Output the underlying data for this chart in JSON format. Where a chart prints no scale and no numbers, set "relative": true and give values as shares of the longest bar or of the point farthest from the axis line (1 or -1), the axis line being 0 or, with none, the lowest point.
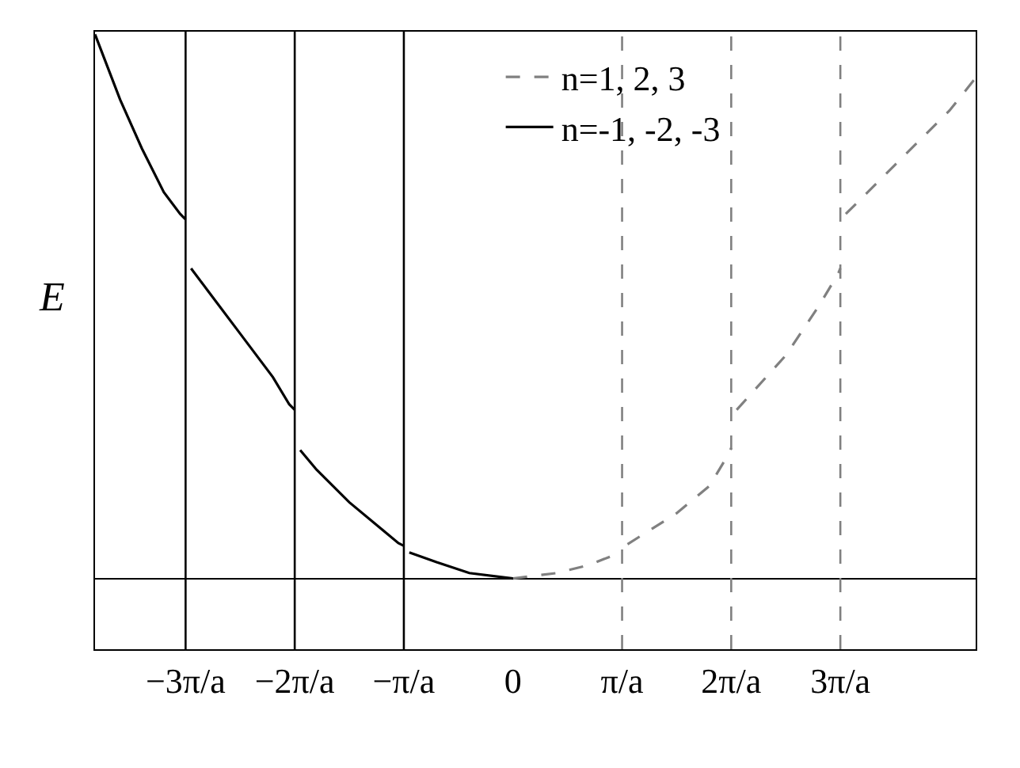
{
  "chart_data": {
    "type": "line",
    "relative": true,
    "ylabel": "E",
    "xlim": [
      -3.83,
      4.24
    ],
    "xticks": [
      {
        "value": -3,
        "label": "−3π/a"
      },
      {
        "value": -2,
        "label": "−2π/a"
      },
      {
        "value": -1,
        "label": "−π/a"
      },
      0,
      {
        "value": 1,
        "label": "π/a"
      },
      {
        "value": 2,
        "label": "2π/a"
      },
      {
        "value": 3,
        "label": "3π/a"
      }
    ],
    "legend": "top right",
    "series": [
      {
        "name": "n=1, 2, 3",
        "color": "#808080",
        "line_style": "dashed",
        "x": [
          0,
          0.4,
          0.7,
          0.95,
          1.0,
          null,
          1.05,
          1.5,
          1.8,
          1.98,
          2.0,
          null,
          2.05,
          2.5,
          2.8,
          2.98,
          3.0,
          null,
          3.05,
          3.5,
          4.0,
          4.24
        ],
        "values": [
          0,
          0.01,
          0.025,
          0.045,
          0.05,
          null,
          0.063,
          0.12,
          0.17,
          0.23,
          0.24,
          null,
          0.31,
          0.41,
          0.5,
          0.56,
          0.57,
          null,
          0.67,
          0.76,
          0.86,
          0.92
        ]
      },
      {
        "name": "n=-1, -2, -3",
        "color": "#000000",
        "line_style": "solid",
        "x": [
          -3.83,
          -3.6,
          -3.4,
          -3.2,
          -3.05,
          -3.0,
          null,
          -2.95,
          -2.8,
          -2.5,
          -2.2,
          -2.05,
          -2.0,
          null,
          -1.95,
          -1.8,
          -1.5,
          -1.2,
          -1.05,
          -1.0,
          null,
          -0.95,
          -0.7,
          -0.4,
          0
        ],
        "values": [
          1.0,
          0.88,
          0.79,
          0.71,
          0.67,
          0.66,
          null,
          0.57,
          0.53,
          0.45,
          0.37,
          0.32,
          0.31,
          null,
          0.236,
          0.2,
          0.14,
          0.09,
          0.065,
          0.06,
          null,
          0.048,
          0.03,
          0.01,
          0
        ]
      }
    ],
    "ref_lines": [
      {
        "axis": "x",
        "value": -3,
        "color": "#000000",
        "line_style": "solid"
      },
      {
        "axis": "x",
        "value": -2,
        "color": "#000000",
        "line_style": "solid"
      },
      {
        "axis": "x",
        "value": -1,
        "color": "#000000",
        "line_style": "solid"
      },
      {
        "axis": "x",
        "value": 1,
        "color": "#808080",
        "line_style": "dashed"
      },
      {
        "axis": "x",
        "value": 2,
        "color": "#808080",
        "line_style": "dashed"
      },
      {
        "axis": "x",
        "value": 3,
        "color": "#808080",
        "line_style": "dashed"
      }
    ]
  }
}
